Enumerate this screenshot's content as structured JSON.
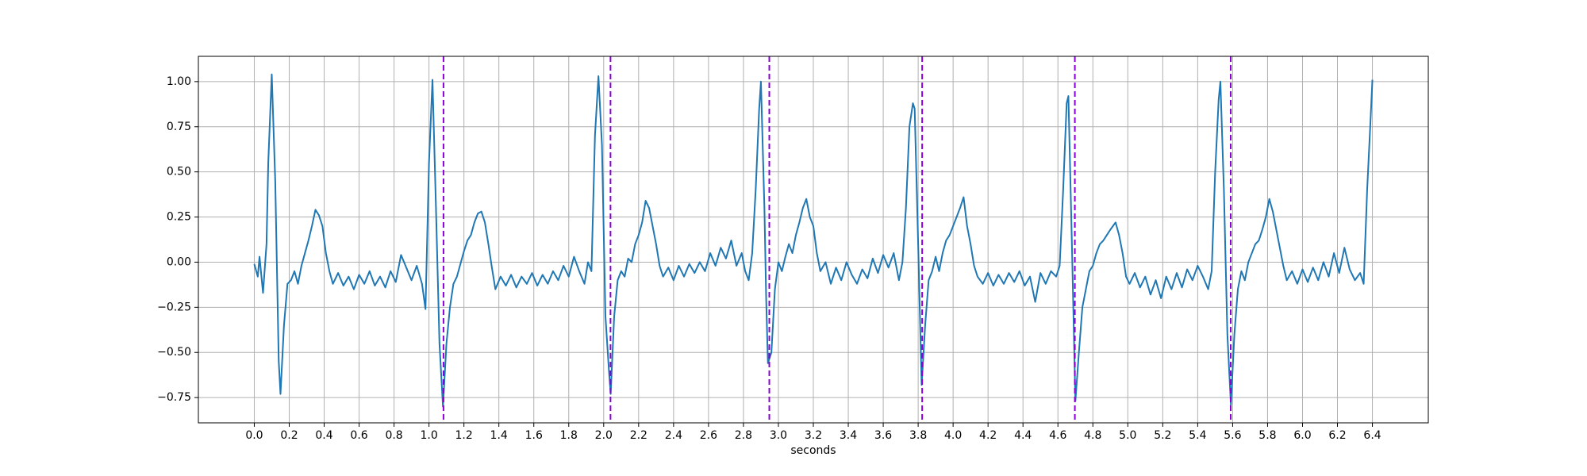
{
  "chart_data": {
    "type": "line",
    "xlabel": "seconds",
    "color": "#1f77b4",
    "grid": true,
    "xlim": [
      -0.32,
      6.72
    ],
    "ylim": [
      -0.89,
      1.14
    ],
    "xticks": [
      {
        "value": 0,
        "label": "0.0"
      },
      0.2,
      0.4,
      0.6,
      0.8,
      {
        "value": 1,
        "label": "1.0"
      },
      1.2,
      1.4,
      1.6,
      1.8,
      {
        "value": 2,
        "label": "2.0"
      },
      2.2,
      2.4,
      2.6,
      2.8,
      {
        "value": 3,
        "label": "3.0"
      },
      3.2,
      3.4,
      3.6,
      3.8,
      {
        "value": 4,
        "label": "4.0"
      },
      4.2,
      4.4,
      4.6,
      4.8,
      {
        "value": 5,
        "label": "5.0"
      },
      5.2,
      5.4,
      5.6,
      5.8,
      {
        "value": 6,
        "label": "6.0"
      },
      6.2,
      6.4
    ],
    "yticks": [
      {
        "value": -0.75,
        "label": "−0.75"
      },
      {
        "value": -0.5,
        "label": "−0.50"
      },
      {
        "value": -0.25,
        "label": "−0.25"
      },
      {
        "value": 0,
        "label": "0.00"
      },
      {
        "value": 0.25,
        "label": "0.25"
      },
      {
        "value": 0.5,
        "label": "0.50"
      },
      {
        "value": 0.75,
        "label": "0.75"
      },
      {
        "value": 1,
        "label": "1.00"
      }
    ],
    "vlines": [
      1.083,
      2.039,
      2.948,
      3.823,
      4.697,
      5.589
    ],
    "vline_color": "#8a00d4",
    "x": [
      0.0,
      0.02,
      0.03,
      0.05,
      0.07,
      0.08,
      0.1,
      0.12,
      0.14,
      0.15,
      0.17,
      0.19,
      0.21,
      0.23,
      0.25,
      0.27,
      0.29,
      0.31,
      0.33,
      0.35,
      0.37,
      0.39,
      0.41,
      0.43,
      0.45,
      0.48,
      0.51,
      0.54,
      0.57,
      0.6,
      0.63,
      0.66,
      0.69,
      0.72,
      0.75,
      0.78,
      0.81,
      0.84,
      0.87,
      0.9,
      0.93,
      0.96,
      0.98,
      1.0,
      1.02,
      1.04,
      1.06,
      1.08,
      1.1,
      1.12,
      1.14,
      1.16,
      1.18,
      1.2,
      1.22,
      1.24,
      1.26,
      1.28,
      1.3,
      1.32,
      1.34,
      1.36,
      1.38,
      1.41,
      1.44,
      1.47,
      1.5,
      1.53,
      1.56,
      1.59,
      1.62,
      1.65,
      1.68,
      1.71,
      1.74,
      1.77,
      1.8,
      1.83,
      1.86,
      1.89,
      1.91,
      1.93,
      1.95,
      1.97,
      1.99,
      2.01,
      2.03,
      2.04,
      2.06,
      2.08,
      2.1,
      2.12,
      2.14,
      2.16,
      2.18,
      2.2,
      2.22,
      2.24,
      2.26,
      2.28,
      2.3,
      2.32,
      2.34,
      2.37,
      2.4,
      2.43,
      2.46,
      2.49,
      2.52,
      2.55,
      2.58,
      2.61,
      2.64,
      2.67,
      2.7,
      2.73,
      2.76,
      2.79,
      2.81,
      2.83,
      2.85,
      2.87,
      2.89,
      2.9,
      2.92,
      2.93,
      2.94,
      2.96,
      2.98,
      3.0,
      3.02,
      3.04,
      3.06,
      3.08,
      3.1,
      3.12,
      3.14,
      3.16,
      3.18,
      3.2,
      3.22,
      3.24,
      3.27,
      3.3,
      3.33,
      3.36,
      3.39,
      3.42,
      3.45,
      3.48,
      3.51,
      3.54,
      3.57,
      3.6,
      3.63,
      3.66,
      3.69,
      3.71,
      3.73,
      3.75,
      3.77,
      3.78,
      3.8,
      3.82,
      3.84,
      3.86,
      3.88,
      3.9,
      3.92,
      3.94,
      3.96,
      3.98,
      4.0,
      4.02,
      4.04,
      4.06,
      4.08,
      4.1,
      4.12,
      4.14,
      4.17,
      4.2,
      4.23,
      4.26,
      4.29,
      4.32,
      4.35,
      4.38,
      4.41,
      4.44,
      4.47,
      4.5,
      4.53,
      4.56,
      4.59,
      4.61,
      4.63,
      4.65,
      4.66,
      4.68,
      4.7,
      4.72,
      4.74,
      4.76,
      4.78,
      4.8,
      4.82,
      4.84,
      4.86,
      4.88,
      4.9,
      4.93,
      4.95,
      4.97,
      4.99,
      5.01,
      5.04,
      5.07,
      5.1,
      5.13,
      5.16,
      5.19,
      5.22,
      5.25,
      5.28,
      5.31,
      5.34,
      5.37,
      5.4,
      5.43,
      5.46,
      5.48,
      5.5,
      5.52,
      5.53,
      5.55,
      5.57,
      5.59,
      5.61,
      5.63,
      5.65,
      5.67,
      5.69,
      5.71,
      5.73,
      5.75,
      5.77,
      5.79,
      5.81,
      5.83,
      5.85,
      5.87,
      5.89,
      5.91,
      5.94,
      5.97,
      6.0,
      6.03,
      6.06,
      6.09,
      6.12,
      6.15,
      6.18,
      6.21,
      6.24,
      6.27,
      6.3,
      6.33,
      6.35,
      6.37,
      6.39,
      6.4
    ],
    "values": [
      -0.01,
      -0.08,
      0.03,
      -0.17,
      0.1,
      0.55,
      1.04,
      0.45,
      -0.55,
      -0.73,
      -0.35,
      -0.12,
      -0.1,
      -0.05,
      -0.12,
      -0.02,
      0.05,
      0.12,
      0.2,
      0.29,
      0.26,
      0.2,
      0.05,
      -0.05,
      -0.12,
      -0.06,
      -0.13,
      -0.08,
      -0.15,
      -0.07,
      -0.12,
      -0.05,
      -0.13,
      -0.08,
      -0.14,
      -0.05,
      -0.11,
      0.04,
      -0.03,
      -0.1,
      -0.02,
      -0.12,
      -0.26,
      0.55,
      1.01,
      0.3,
      -0.45,
      -0.8,
      -0.45,
      -0.25,
      -0.12,
      -0.08,
      -0.01,
      0.06,
      0.12,
      0.15,
      0.22,
      0.27,
      0.28,
      0.22,
      0.1,
      -0.03,
      -0.15,
      -0.08,
      -0.13,
      -0.07,
      -0.14,
      -0.08,
      -0.12,
      -0.06,
      -0.13,
      -0.07,
      -0.12,
      -0.05,
      -0.1,
      -0.02,
      -0.08,
      0.03,
      -0.05,
      -0.12,
      0.0,
      -0.05,
      0.7,
      1.03,
      0.65,
      -0.3,
      -0.6,
      -0.73,
      -0.3,
      -0.1,
      -0.05,
      -0.08,
      0.02,
      0.0,
      0.1,
      0.15,
      0.22,
      0.34,
      0.3,
      0.2,
      0.1,
      -0.02,
      -0.08,
      -0.03,
      -0.1,
      -0.02,
      -0.08,
      -0.01,
      -0.06,
      0.0,
      -0.05,
      0.05,
      -0.02,
      0.08,
      0.02,
      0.12,
      -0.02,
      0.05,
      -0.05,
      -0.1,
      0.05,
      0.4,
      0.85,
      1.0,
      0.3,
      -0.2,
      -0.56,
      -0.5,
      -0.15,
      0.0,
      -0.05,
      0.03,
      0.1,
      0.05,
      0.15,
      0.22,
      0.3,
      0.35,
      0.25,
      0.2,
      0.05,
      -0.05,
      0.0,
      -0.12,
      -0.03,
      -0.1,
      0.0,
      -0.07,
      -0.12,
      -0.04,
      -0.09,
      0.02,
      -0.06,
      0.04,
      -0.03,
      0.05,
      -0.1,
      0.0,
      0.3,
      0.75,
      0.88,
      0.85,
      0.1,
      -0.68,
      -0.35,
      -0.1,
      -0.05,
      0.03,
      -0.05,
      0.05,
      0.12,
      0.15,
      0.2,
      0.25,
      0.3,
      0.36,
      0.2,
      0.1,
      -0.02,
      -0.08,
      -0.12,
      -0.06,
      -0.13,
      -0.07,
      -0.12,
      -0.06,
      -0.11,
      -0.05,
      -0.13,
      -0.08,
      -0.22,
      -0.06,
      -0.12,
      -0.05,
      -0.08,
      -0.02,
      0.4,
      0.88,
      0.92,
      0.1,
      -0.77,
      -0.5,
      -0.25,
      -0.15,
      -0.05,
      -0.02,
      0.05,
      0.1,
      0.12,
      0.15,
      0.18,
      0.22,
      0.15,
      0.05,
      -0.08,
      -0.12,
      -0.06,
      -0.14,
      -0.08,
      -0.18,
      -0.1,
      -0.2,
      -0.08,
      -0.15,
      -0.06,
      -0.14,
      -0.04,
      -0.1,
      -0.02,
      -0.08,
      -0.15,
      -0.05,
      0.5,
      0.9,
      1.0,
      0.4,
      -0.4,
      -0.79,
      -0.4,
      -0.15,
      -0.05,
      -0.1,
      0.0,
      0.05,
      0.1,
      0.12,
      0.18,
      0.25,
      0.35,
      0.28,
      0.18,
      0.08,
      -0.02,
      -0.1,
      -0.05,
      -0.12,
      -0.04,
      -0.11,
      -0.03,
      -0.1,
      0.0,
      -0.08,
      0.05,
      -0.06,
      0.08,
      -0.04,
      -0.1,
      -0.06,
      -0.12,
      0.4,
      0.8,
      1.01
    ]
  }
}
